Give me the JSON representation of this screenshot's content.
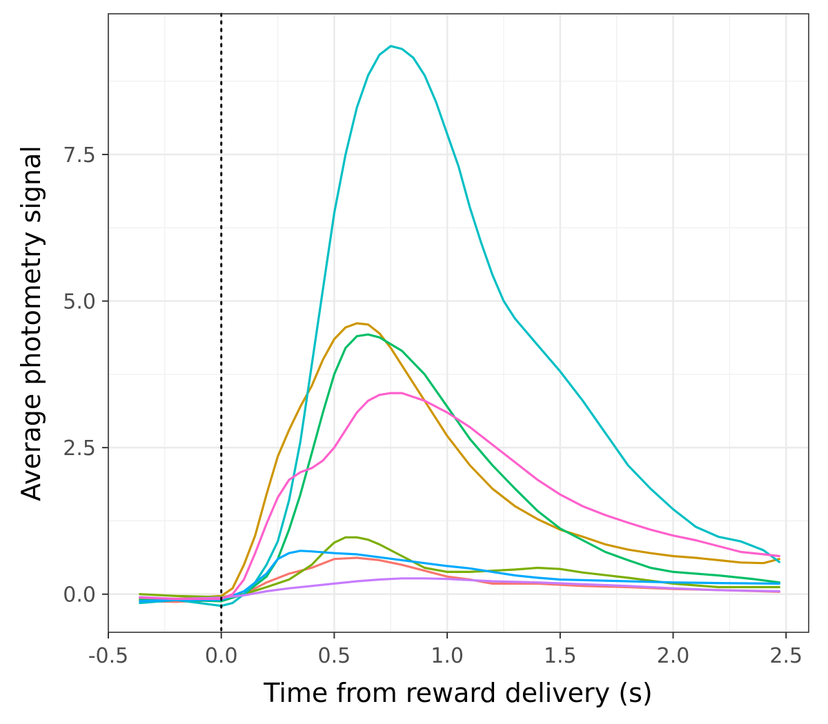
{
  "chart_data": {
    "type": "line",
    "title": "",
    "xlabel": "Time from reward delivery (s)",
    "ylabel": "Average photometry signal",
    "xlim": [
      -0.5,
      2.6
    ],
    "ylim": [
      -0.65,
      9.9
    ],
    "x_ticks": [
      -0.5,
      0.0,
      0.5,
      1.0,
      1.5,
      2.0,
      2.5
    ],
    "x_tick_labels": [
      "-0.5",
      "0.0",
      "0.5",
      "1.0",
      "1.5",
      "2.0",
      "2.5"
    ],
    "y_ticks": [
      0.0,
      2.5,
      5.0,
      7.5
    ],
    "y_tick_labels": [
      "0.0",
      "2.5",
      "5.0",
      "7.5"
    ],
    "grid": true,
    "legend": "none",
    "reference_line": {
      "x": 0.0,
      "style": "dotted",
      "color": "#000000"
    },
    "series": [
      {
        "color": "#F8766D",
        "points": [
          [
            -0.36,
            -0.12
          ],
          [
            -0.2,
            -0.13
          ],
          [
            0.0,
            -0.1
          ],
          [
            0.1,
            0.0
          ],
          [
            0.2,
            0.2
          ],
          [
            0.3,
            0.35
          ],
          [
            0.4,
            0.45
          ],
          [
            0.5,
            0.6
          ],
          [
            0.6,
            0.62
          ],
          [
            0.7,
            0.58
          ],
          [
            0.8,
            0.5
          ],
          [
            0.9,
            0.4
          ],
          [
            1.0,
            0.3
          ],
          [
            1.1,
            0.25
          ],
          [
            1.2,
            0.18
          ],
          [
            1.4,
            0.18
          ],
          [
            1.6,
            0.14
          ],
          [
            1.8,
            0.12
          ],
          [
            2.0,
            0.09
          ],
          [
            2.2,
            0.07
          ],
          [
            2.47,
            0.04
          ]
        ]
      },
      {
        "color": "#CD9600",
        "points": [
          [
            -0.36,
            -0.1
          ],
          [
            -0.2,
            -0.08
          ],
          [
            0.0,
            -0.03
          ],
          [
            0.05,
            0.1
          ],
          [
            0.1,
            0.5
          ],
          [
            0.15,
            1.0
          ],
          [
            0.2,
            1.7
          ],
          [
            0.25,
            2.35
          ],
          [
            0.3,
            2.8
          ],
          [
            0.35,
            3.2
          ],
          [
            0.4,
            3.55
          ],
          [
            0.45,
            4.0
          ],
          [
            0.5,
            4.35
          ],
          [
            0.55,
            4.55
          ],
          [
            0.6,
            4.62
          ],
          [
            0.65,
            4.6
          ],
          [
            0.7,
            4.45
          ],
          [
            0.75,
            4.2
          ],
          [
            0.8,
            3.9
          ],
          [
            0.9,
            3.3
          ],
          [
            1.0,
            2.7
          ],
          [
            1.1,
            2.2
          ],
          [
            1.2,
            1.8
          ],
          [
            1.3,
            1.5
          ],
          [
            1.4,
            1.28
          ],
          [
            1.5,
            1.1
          ],
          [
            1.6,
            0.98
          ],
          [
            1.7,
            0.85
          ],
          [
            1.8,
            0.76
          ],
          [
            1.9,
            0.7
          ],
          [
            2.0,
            0.65
          ],
          [
            2.1,
            0.62
          ],
          [
            2.2,
            0.58
          ],
          [
            2.3,
            0.54
          ],
          [
            2.4,
            0.53
          ],
          [
            2.47,
            0.6
          ]
        ]
      },
      {
        "color": "#7CAE00",
        "points": [
          [
            -0.36,
            0.0
          ],
          [
            -0.2,
            -0.03
          ],
          [
            0.0,
            -0.05
          ],
          [
            0.1,
            0.0
          ],
          [
            0.2,
            0.12
          ],
          [
            0.3,
            0.25
          ],
          [
            0.4,
            0.5
          ],
          [
            0.45,
            0.7
          ],
          [
            0.5,
            0.88
          ],
          [
            0.55,
            0.97
          ],
          [
            0.6,
            0.97
          ],
          [
            0.65,
            0.93
          ],
          [
            0.7,
            0.85
          ],
          [
            0.8,
            0.65
          ],
          [
            0.9,
            0.45
          ],
          [
            1.0,
            0.38
          ],
          [
            1.1,
            0.38
          ],
          [
            1.2,
            0.4
          ],
          [
            1.3,
            0.42
          ],
          [
            1.4,
            0.45
          ],
          [
            1.5,
            0.43
          ],
          [
            1.6,
            0.37
          ],
          [
            1.8,
            0.28
          ],
          [
            2.0,
            0.18
          ],
          [
            2.2,
            0.12
          ],
          [
            2.47,
            0.12
          ]
        ]
      },
      {
        "color": "#00BE67",
        "points": [
          [
            -0.36,
            -0.08
          ],
          [
            -0.2,
            -0.1
          ],
          [
            0.0,
            -0.12
          ],
          [
            0.1,
            0.0
          ],
          [
            0.2,
            0.3
          ],
          [
            0.25,
            0.6
          ],
          [
            0.3,
            1.1
          ],
          [
            0.35,
            1.7
          ],
          [
            0.4,
            2.4
          ],
          [
            0.45,
            3.1
          ],
          [
            0.5,
            3.75
          ],
          [
            0.55,
            4.2
          ],
          [
            0.6,
            4.4
          ],
          [
            0.65,
            4.43
          ],
          [
            0.7,
            4.38
          ],
          [
            0.8,
            4.15
          ],
          [
            0.9,
            3.75
          ],
          [
            1.0,
            3.2
          ],
          [
            1.1,
            2.65
          ],
          [
            1.2,
            2.2
          ],
          [
            1.3,
            1.8
          ],
          [
            1.4,
            1.42
          ],
          [
            1.5,
            1.12
          ],
          [
            1.6,
            0.92
          ],
          [
            1.7,
            0.72
          ],
          [
            1.8,
            0.58
          ],
          [
            1.9,
            0.45
          ],
          [
            2.0,
            0.38
          ],
          [
            2.2,
            0.32
          ],
          [
            2.35,
            0.26
          ],
          [
            2.47,
            0.2
          ]
        ]
      },
      {
        "color": "#00BFC4",
        "points": [
          [
            -0.36,
            -0.15
          ],
          [
            -0.2,
            -0.1
          ],
          [
            0.0,
            -0.2
          ],
          [
            0.05,
            -0.15
          ],
          [
            0.1,
            0.0
          ],
          [
            0.15,
            0.2
          ],
          [
            0.2,
            0.5
          ],
          [
            0.25,
            0.9
          ],
          [
            0.3,
            1.6
          ],
          [
            0.35,
            2.6
          ],
          [
            0.4,
            3.9
          ],
          [
            0.45,
            5.2
          ],
          [
            0.5,
            6.5
          ],
          [
            0.55,
            7.5
          ],
          [
            0.6,
            8.3
          ],
          [
            0.65,
            8.85
          ],
          [
            0.7,
            9.2
          ],
          [
            0.75,
            9.35
          ],
          [
            0.8,
            9.3
          ],
          [
            0.85,
            9.15
          ],
          [
            0.9,
            8.85
          ],
          [
            0.95,
            8.4
          ],
          [
            1.0,
            7.85
          ],
          [
            1.05,
            7.3
          ],
          [
            1.1,
            6.6
          ],
          [
            1.15,
            6.0
          ],
          [
            1.2,
            5.45
          ],
          [
            1.25,
            5.0
          ],
          [
            1.3,
            4.7
          ],
          [
            1.4,
            4.25
          ],
          [
            1.5,
            3.8
          ],
          [
            1.6,
            3.3
          ],
          [
            1.7,
            2.75
          ],
          [
            1.8,
            2.2
          ],
          [
            1.9,
            1.8
          ],
          [
            2.0,
            1.45
          ],
          [
            2.1,
            1.15
          ],
          [
            2.2,
            0.98
          ],
          [
            2.3,
            0.9
          ],
          [
            2.4,
            0.75
          ],
          [
            2.47,
            0.55
          ]
        ]
      },
      {
        "color": "#00A9FF",
        "points": [
          [
            -0.36,
            -0.12
          ],
          [
            -0.2,
            -0.1
          ],
          [
            0.0,
            -0.1
          ],
          [
            0.1,
            0.05
          ],
          [
            0.2,
            0.35
          ],
          [
            0.25,
            0.6
          ],
          [
            0.3,
            0.7
          ],
          [
            0.35,
            0.74
          ],
          [
            0.4,
            0.73
          ],
          [
            0.5,
            0.7
          ],
          [
            0.6,
            0.68
          ],
          [
            0.7,
            0.63
          ],
          [
            0.8,
            0.58
          ],
          [
            0.9,
            0.53
          ],
          [
            1.0,
            0.48
          ],
          [
            1.1,
            0.44
          ],
          [
            1.2,
            0.38
          ],
          [
            1.3,
            0.32
          ],
          [
            1.4,
            0.28
          ],
          [
            1.5,
            0.25
          ],
          [
            1.6,
            0.24
          ],
          [
            1.8,
            0.22
          ],
          [
            2.0,
            0.2
          ],
          [
            2.2,
            0.19
          ],
          [
            2.47,
            0.18
          ]
        ]
      },
      {
        "color": "#C77CFF",
        "points": [
          [
            -0.36,
            -0.05
          ],
          [
            -0.2,
            -0.08
          ],
          [
            0.0,
            -0.06
          ],
          [
            0.1,
            -0.02
          ],
          [
            0.2,
            0.05
          ],
          [
            0.3,
            0.1
          ],
          [
            0.4,
            0.14
          ],
          [
            0.5,
            0.18
          ],
          [
            0.6,
            0.22
          ],
          [
            0.7,
            0.25
          ],
          [
            0.8,
            0.27
          ],
          [
            0.9,
            0.27
          ],
          [
            1.0,
            0.26
          ],
          [
            1.1,
            0.24
          ],
          [
            1.2,
            0.22
          ],
          [
            1.4,
            0.2
          ],
          [
            1.6,
            0.17
          ],
          [
            1.8,
            0.14
          ],
          [
            2.0,
            0.1
          ],
          [
            2.2,
            0.07
          ],
          [
            2.47,
            0.05
          ]
        ]
      },
      {
        "color": "#FF61CC",
        "points": [
          [
            -0.36,
            -0.06
          ],
          [
            -0.2,
            -0.08
          ],
          [
            0.0,
            -0.08
          ],
          [
            0.05,
            0.0
          ],
          [
            0.1,
            0.25
          ],
          [
            0.15,
            0.7
          ],
          [
            0.2,
            1.2
          ],
          [
            0.25,
            1.65
          ],
          [
            0.3,
            1.95
          ],
          [
            0.35,
            2.08
          ],
          [
            0.4,
            2.15
          ],
          [
            0.45,
            2.28
          ],
          [
            0.5,
            2.5
          ],
          [
            0.55,
            2.8
          ],
          [
            0.6,
            3.1
          ],
          [
            0.65,
            3.3
          ],
          [
            0.7,
            3.4
          ],
          [
            0.75,
            3.43
          ],
          [
            0.8,
            3.43
          ],
          [
            0.9,
            3.3
          ],
          [
            1.0,
            3.1
          ],
          [
            1.1,
            2.85
          ],
          [
            1.2,
            2.55
          ],
          [
            1.3,
            2.25
          ],
          [
            1.4,
            1.95
          ],
          [
            1.5,
            1.7
          ],
          [
            1.6,
            1.5
          ],
          [
            1.7,
            1.35
          ],
          [
            1.8,
            1.22
          ],
          [
            1.9,
            1.1
          ],
          [
            2.0,
            1.0
          ],
          [
            2.1,
            0.92
          ],
          [
            2.2,
            0.82
          ],
          [
            2.3,
            0.72
          ],
          [
            2.4,
            0.68
          ],
          [
            2.47,
            0.65
          ]
        ]
      }
    ]
  }
}
